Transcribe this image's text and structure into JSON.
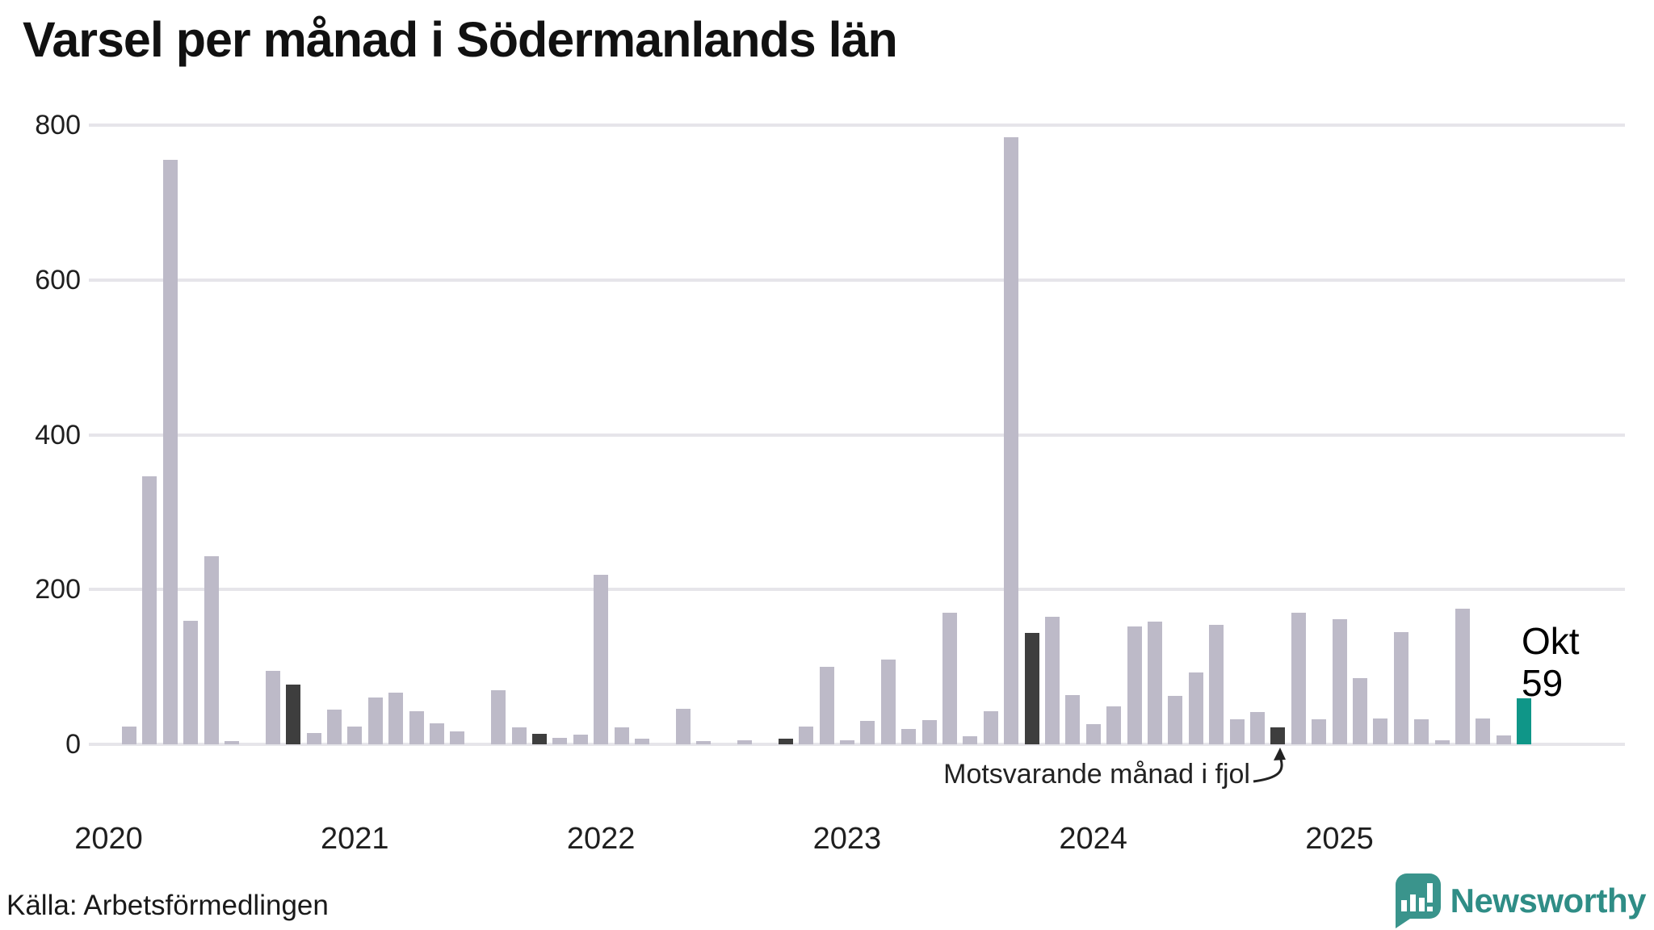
{
  "title": "Varsel per månad i Södermanlands län",
  "source": "Källa: Arbetsförmedlingen",
  "annotation": {
    "text": "Motsvarande månad i fjol"
  },
  "highlight_label": {
    "line1": "Okt",
    "line2": "59"
  },
  "logo": {
    "text": "Newsworthy"
  },
  "colors": {
    "bar": "#bdbac8",
    "compare": "#3e3e3e",
    "current": "#0f9688",
    "grid": "#e6e5ea",
    "logo": "#3a948c",
    "logo_text": "#2f8d86"
  },
  "chart_data": {
    "type": "bar",
    "title": "Varsel per månad i Södermanlands län",
    "source": "Arbetsförmedlingen",
    "ylabel": "",
    "xlabel": "",
    "ylim": [
      0,
      800
    ],
    "yticks": [
      0,
      200,
      400,
      600,
      800
    ],
    "grid": "horizontal",
    "legend": "none",
    "year_labels": [
      "2020",
      "2021",
      "2022",
      "2023",
      "2024",
      "2025"
    ],
    "highlight": {
      "month": "Okt 2025",
      "value": 59
    },
    "comparison_note": "Dark bars mark October of each previous year (motsvarande månad i fjol)",
    "months": [
      {
        "m": "2020-01",
        "v": 0
      },
      {
        "m": "2020-02",
        "v": 23
      },
      {
        "m": "2020-03",
        "v": 346
      },
      {
        "m": "2020-04",
        "v": 755
      },
      {
        "m": "2020-05",
        "v": 160
      },
      {
        "m": "2020-06",
        "v": 243
      },
      {
        "m": "2020-07",
        "v": 4
      },
      {
        "m": "2020-08",
        "v": 0
      },
      {
        "m": "2020-09",
        "v": 95
      },
      {
        "m": "2020-10",
        "v": 77,
        "role": "compare"
      },
      {
        "m": "2020-11",
        "v": 15
      },
      {
        "m": "2020-12",
        "v": 45
      },
      {
        "m": "2021-01",
        "v": 23
      },
      {
        "m": "2021-02",
        "v": 61
      },
      {
        "m": "2021-03",
        "v": 67
      },
      {
        "m": "2021-04",
        "v": 43
      },
      {
        "m": "2021-05",
        "v": 27
      },
      {
        "m": "2021-06",
        "v": 17
      },
      {
        "m": "2021-07",
        "v": 0
      },
      {
        "m": "2021-08",
        "v": 70
      },
      {
        "m": "2021-09",
        "v": 22
      },
      {
        "m": "2021-10",
        "v": 14,
        "role": "compare"
      },
      {
        "m": "2021-11",
        "v": 8
      },
      {
        "m": "2021-12",
        "v": 12
      },
      {
        "m": "2022-01",
        "v": 219
      },
      {
        "m": "2022-02",
        "v": 22
      },
      {
        "m": "2022-03",
        "v": 7
      },
      {
        "m": "2022-04",
        "v": 0
      },
      {
        "m": "2022-05",
        "v": 46
      },
      {
        "m": "2022-06",
        "v": 4
      },
      {
        "m": "2022-07",
        "v": 0
      },
      {
        "m": "2022-08",
        "v": 5
      },
      {
        "m": "2022-09",
        "v": 0
      },
      {
        "m": "2022-10",
        "v": 7,
        "role": "compare"
      },
      {
        "m": "2022-11",
        "v": 23
      },
      {
        "m": "2022-12",
        "v": 100
      },
      {
        "m": "2023-01",
        "v": 5
      },
      {
        "m": "2023-02",
        "v": 30
      },
      {
        "m": "2023-03",
        "v": 110
      },
      {
        "m": "2023-04",
        "v": 20
      },
      {
        "m": "2023-05",
        "v": 31
      },
      {
        "m": "2023-06",
        "v": 170
      },
      {
        "m": "2023-07",
        "v": 10
      },
      {
        "m": "2023-08",
        "v": 43
      },
      {
        "m": "2023-09",
        "v": 784
      },
      {
        "m": "2023-10",
        "v": 144,
        "role": "compare"
      },
      {
        "m": "2023-11",
        "v": 165
      },
      {
        "m": "2023-12",
        "v": 64
      },
      {
        "m": "2024-01",
        "v": 26
      },
      {
        "m": "2024-02",
        "v": 49
      },
      {
        "m": "2024-03",
        "v": 152
      },
      {
        "m": "2024-04",
        "v": 159
      },
      {
        "m": "2024-05",
        "v": 63
      },
      {
        "m": "2024-06",
        "v": 93
      },
      {
        "m": "2024-07",
        "v": 154
      },
      {
        "m": "2024-08",
        "v": 32
      },
      {
        "m": "2024-09",
        "v": 42
      },
      {
        "m": "2024-10",
        "v": 22,
        "role": "compare"
      },
      {
        "m": "2024-11",
        "v": 170
      },
      {
        "m": "2024-12",
        "v": 32
      },
      {
        "m": "2025-01",
        "v": 162
      },
      {
        "m": "2025-02",
        "v": 86
      },
      {
        "m": "2025-03",
        "v": 33
      },
      {
        "m": "2025-04",
        "v": 145
      },
      {
        "m": "2025-05",
        "v": 32
      },
      {
        "m": "2025-06",
        "v": 5
      },
      {
        "m": "2025-07",
        "v": 175
      },
      {
        "m": "2025-08",
        "v": 33
      },
      {
        "m": "2025-09",
        "v": 11
      },
      {
        "m": "2025-10",
        "v": 59,
        "role": "current"
      }
    ]
  }
}
